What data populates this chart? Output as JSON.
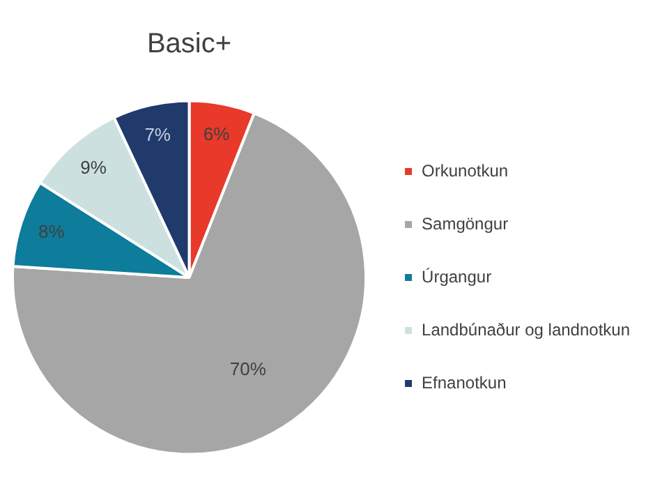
{
  "chart_data": {
    "type": "pie",
    "title": "Basic+",
    "categories": [
      "Orkunotkun",
      "Samgöngur",
      "Úrgangur",
      "Landbúnaður og landnotkun",
      "Efnanotkun"
    ],
    "values": [
      6,
      70,
      8,
      9,
      7
    ],
    "value_labels": [
      "6%",
      "70%",
      "8%",
      "9%",
      "7%"
    ],
    "colors": [
      "#e8392b",
      "#a6a6a6",
      "#0e7c9b",
      "#cce0e0",
      "#1f3a6b"
    ],
    "legend": "right"
  }
}
